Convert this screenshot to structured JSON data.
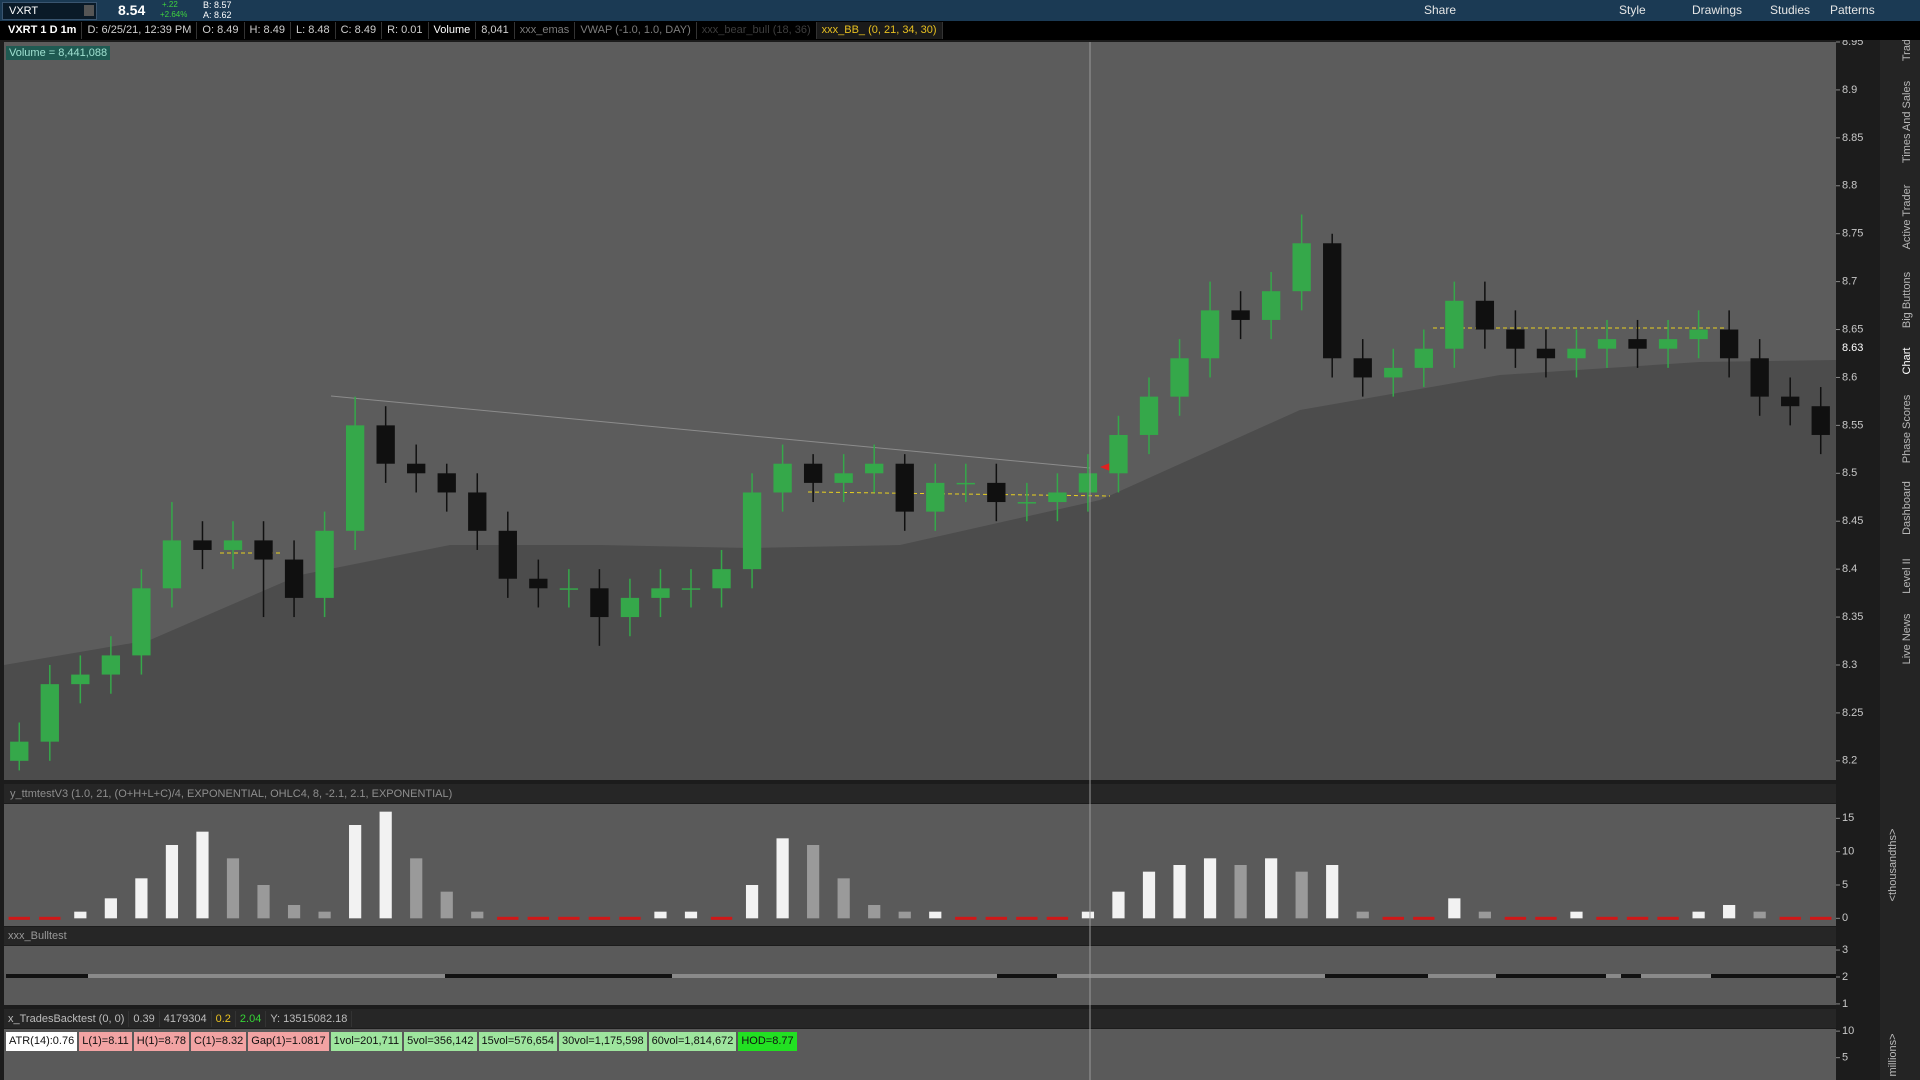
{
  "toolbar": {
    "symbol": "VXRT",
    "last": "8.54",
    "change": "+.22",
    "change_pct": "+2.64%",
    "bid": "B: 8.57",
    "ask": "A: 8.62",
    "buttons": [
      "Share",
      "Style",
      "Drawings",
      "Studies",
      "Patterns"
    ]
  },
  "info_bar": [
    "VXRT 1 D 1m",
    "D: 6/25/21, 12:39 PM",
    "O: 8.49",
    "H: 8.49",
    "L: 8.48",
    "C: 8.49",
    "R: 0.01",
    "Volume",
    "8,041",
    "xxx_emas",
    "VWAP (-1.0, 1.0, DAY)",
    "xxx_bear_bull (18, 36)",
    "xxx_BB_ (0, 21, 34, 30)"
  ],
  "volume_label": "Volume = 8,441,088",
  "price_chart": {
    "type": "candlestick",
    "ylim": [
      8.18,
      8.95
    ],
    "yticks": [
      8.95,
      8.9,
      8.85,
      8.8,
      8.75,
      8.7,
      8.65,
      8.6,
      8.55,
      8.5,
      8.45,
      8.4,
      8.35,
      8.3,
      8.25,
      8.2
    ],
    "open": [
      8.2,
      8.22,
      8.28,
      8.29,
      8.31,
      8.38,
      8.43,
      8.42,
      8.43,
      8.41,
      8.37,
      8.44,
      8.55,
      8.51,
      8.5,
      8.48,
      8.44,
      8.39,
      8.38,
      8.38,
      8.35,
      8.37,
      8.38,
      8.38,
      8.4,
      8.48,
      8.51,
      8.49,
      8.5,
      8.51,
      8.46,
      8.49,
      8.49,
      8.47,
      8.47,
      8.48,
      8.5,
      8.54,
      8.58,
      8.62,
      8.67,
      8.66,
      8.69,
      8.74,
      8.62,
      8.6,
      8.61,
      8.63,
      8.68,
      8.65,
      8.63,
      8.62,
      8.63,
      8.64,
      8.63,
      8.64,
      8.65,
      8.62,
      8.58,
      8.57
    ],
    "high": [
      8.24,
      8.3,
      8.31,
      8.33,
      8.4,
      8.47,
      8.45,
      8.45,
      8.45,
      8.43,
      8.46,
      8.58,
      8.57,
      8.53,
      8.51,
      8.5,
      8.46,
      8.41,
      8.4,
      8.4,
      8.39,
      8.4,
      8.4,
      8.42,
      8.5,
      8.53,
      8.52,
      8.52,
      8.53,
      8.52,
      8.51,
      8.51,
      8.51,
      8.49,
      8.5,
      8.52,
      8.56,
      8.6,
      8.64,
      8.7,
      8.69,
      8.71,
      8.77,
      8.75,
      8.64,
      8.63,
      8.65,
      8.7,
      8.7,
      8.67,
      8.65,
      8.65,
      8.66,
      8.66,
      8.66,
      8.67,
      8.67,
      8.64,
      8.6,
      8.59
    ],
    "low": [
      8.19,
      8.2,
      8.26,
      8.27,
      8.29,
      8.36,
      8.4,
      8.4,
      8.35,
      8.35,
      8.35,
      8.42,
      8.49,
      8.48,
      8.46,
      8.42,
      8.37,
      8.36,
      8.36,
      8.32,
      8.33,
      8.35,
      8.36,
      8.36,
      8.38,
      8.46,
      8.47,
      8.47,
      8.48,
      8.44,
      8.44,
      8.47,
      8.45,
      8.45,
      8.45,
      8.46,
      8.48,
      8.52,
      8.56,
      8.6,
      8.64,
      8.64,
      8.67,
      8.6,
      8.58,
      8.58,
      8.59,
      8.61,
      8.63,
      8.61,
      8.6,
      8.6,
      8.61,
      8.61,
      8.61,
      8.62,
      8.6,
      8.56,
      8.55,
      8.52
    ],
    "close": [
      8.22,
      8.28,
      8.29,
      8.31,
      8.38,
      8.43,
      8.42,
      8.43,
      8.41,
      8.37,
      8.44,
      8.55,
      8.51,
      8.5,
      8.48,
      8.44,
      8.39,
      8.38,
      8.38,
      8.35,
      8.37,
      8.38,
      8.38,
      8.4,
      8.48,
      8.51,
      8.49,
      8.5,
      8.51,
      8.46,
      8.49,
      8.49,
      8.47,
      8.47,
      8.48,
      8.5,
      8.54,
      8.58,
      8.62,
      8.67,
      8.66,
      8.69,
      8.74,
      8.62,
      8.6,
      8.61,
      8.63,
      8.68,
      8.65,
      8.63,
      8.62,
      8.63,
      8.64,
      8.63,
      8.64,
      8.65,
      8.62,
      8.58,
      8.57,
      8.54
    ],
    "up_color": "#35a84a",
    "down_color": "#101010",
    "last_price_label": "8.63"
  },
  "oscillator": {
    "type": "histogram",
    "title": "y_ttmtestV3 (1.0, 21, (O+H+L+C)/4, EXPONENTIAL, OHLC4, 8, -2.1, 2.1, EXPONENTIAL)",
    "ylim": [
      -1,
      17
    ],
    "yticks": [
      15,
      10,
      5,
      0
    ],
    "values": [
      0,
      0,
      1,
      3,
      6,
      11,
      13,
      9,
      5,
      2,
      1,
      14,
      16,
      9,
      4,
      1,
      0,
      0,
      0,
      0,
      0,
      1,
      1,
      0,
      5,
      12,
      11,
      6,
      2,
      1,
      1,
      0,
      0,
      0,
      0,
      1,
      4,
      7,
      8,
      9,
      8,
      9,
      7,
      8,
      1,
      0,
      0,
      3,
      1,
      0,
      0,
      1,
      0,
      0,
      0,
      1,
      2,
      1,
      0,
      0
    ],
    "rising_color": "#f2f2f2",
    "falling_color": "#9a9a9a",
    "zero_color": "#d01818",
    "unit_label": "<thousandths>"
  },
  "bulltest": {
    "title": "xxx_Bulltest",
    "ylim": [
      0.96,
      3.15
    ],
    "yticks": [
      3,
      2,
      1
    ]
  },
  "backtest": {
    "title": "x_TradesBacktest (0, 0)",
    "stats": [
      "0.39",
      "4179304",
      "0.2",
      "2.04",
      "Y: 13515082.18"
    ],
    "labels": [
      "ATR(14):0.76",
      "L(1)=8.11",
      "H(1)=8.78",
      "C(1)=8.32",
      "Gap(1)=1.0817",
      "1vol=201,711",
      "5vol=356,142",
      "15vol=576,654",
      "30vol=1,175,598",
      "60vol=1,814,672",
      "HOD=8.77"
    ],
    "ylim": [
      0.8,
      10.4
    ],
    "yticks": [
      10,
      5
    ],
    "unit_label": "millions>"
  },
  "side_tabs": [
    "Trade",
    "Times And Sales",
    "Active Trader",
    "Big Buttons",
    "Chart",
    "Phase Scores",
    "Dashboard",
    "Level II",
    "Live News"
  ]
}
